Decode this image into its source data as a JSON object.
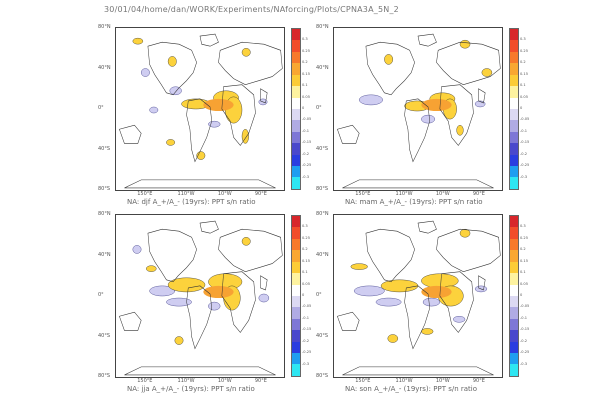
{
  "header": {
    "title": "30/01/04/home/dan/WORK/Experiments/NAforcing/Plots/CPNA3A_5N_2"
  },
  "axes": {
    "lat_labels": [
      "80°N",
      "40°N",
      "0°",
      "40°S",
      "80°S"
    ],
    "lon_labels": [
      "150°E",
      "110°W",
      "10°W",
      "90°E"
    ]
  },
  "colorbar": {
    "colors": [
      "#d8262b",
      "#f24d2a",
      "#f7792b",
      "#f9a732",
      "#fccc37",
      "#fef3a0",
      "#ffffff",
      "#dcd9f3",
      "#b0abe4",
      "#7e77d6",
      "#4a48cc",
      "#2a3de0",
      "#1e9ef0",
      "#2ee6f2"
    ],
    "labels": [
      "0.3",
      "0.25",
      "0.2",
      "0.15",
      "0.1",
      "0.05",
      "0",
      "-0.05",
      "-0.1",
      "-0.15",
      "-0.2",
      "-0.25",
      "-0.3"
    ]
  },
  "panels": [
    {
      "caption": "NA: djf A_+/A_- (19yrs): PPT s/n ratio"
    },
    {
      "caption": "NA: mam A_+/A_- (19yrs): PPT s/n ratio"
    },
    {
      "caption": "NA: jja A_+/A_- (19yrs): PPT s/n ratio"
    },
    {
      "caption": "NA: son A_+/A_- (19yrs): PPT s/n ratio"
    }
  ]
}
